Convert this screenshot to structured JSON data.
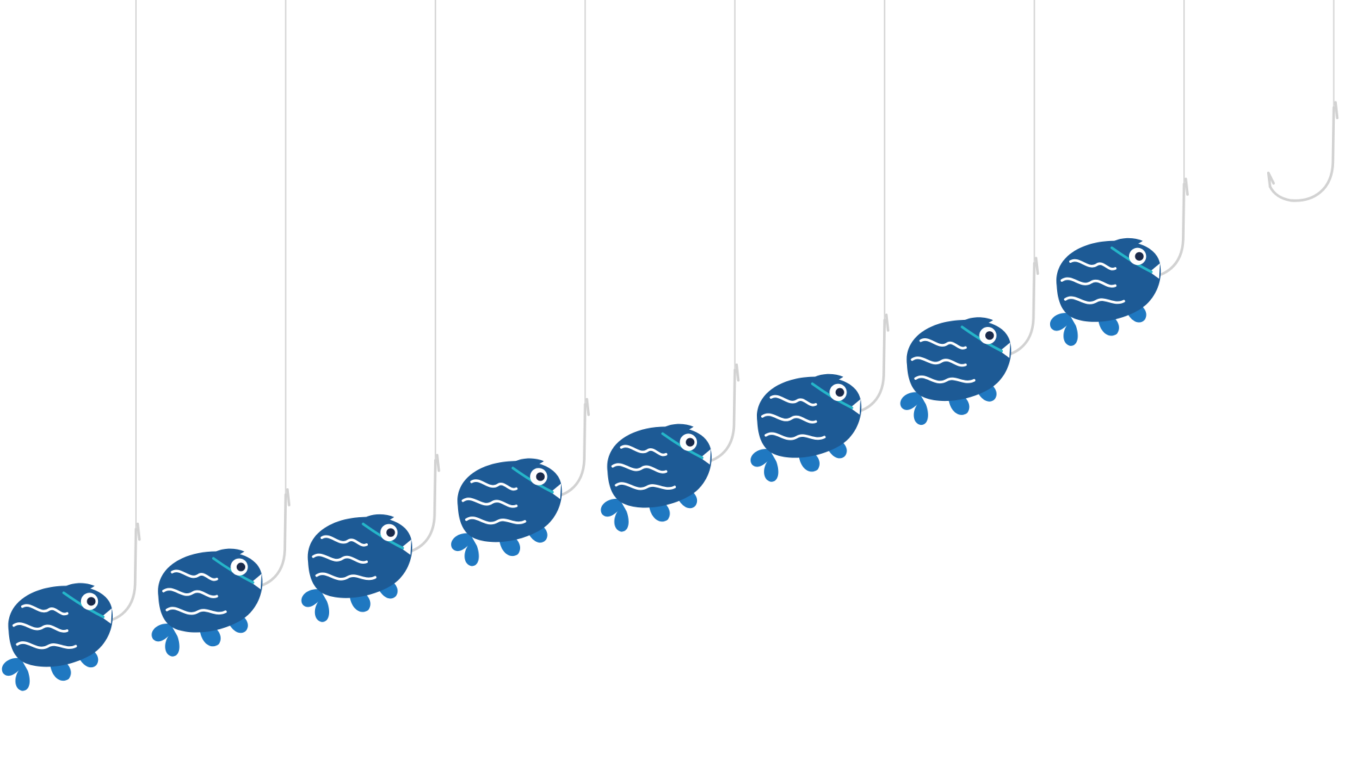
{
  "scene": {
    "description_free": true,
    "background_color": "#ffffff",
    "line_color": "#d6d6d6",
    "hook_color": "#d2d2d2",
    "fish_body_color": "#1d5a95",
    "fish_fin_color": "#1f78c1",
    "fish_stripe_color": "#ffffff",
    "fish_band_color": "#25b6c9",
    "fish_eye_color": "#ffffff",
    "fish_pupil_color": "#1a2a4a",
    "hook_icon": "fishing-hook-icon",
    "fish_icon": "fish-icon",
    "hooked_fish_count": 8,
    "empty_hook_count": 1
  }
}
